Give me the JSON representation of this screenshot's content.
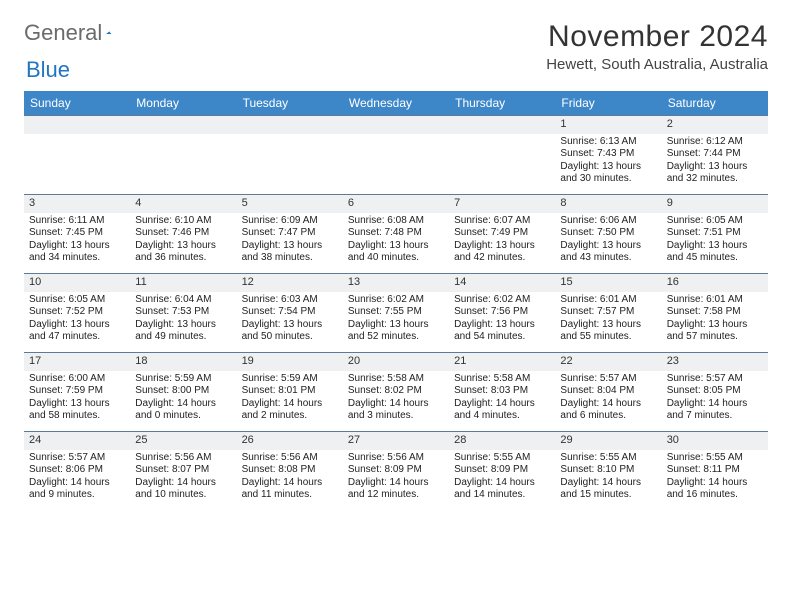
{
  "logo": {
    "text1": "General",
    "text2": "Blue"
  },
  "title": "November 2024",
  "location": "Hewett, South Australia, Australia",
  "headers": [
    "Sunday",
    "Monday",
    "Tuesday",
    "Wednesday",
    "Thursday",
    "Friday",
    "Saturday"
  ],
  "colors": {
    "header_bg": "#3d87c9",
    "header_text": "#ffffff",
    "daynum_bg": "#eef0f1",
    "border": "#5f7a99",
    "logo_gray": "#6b6b6b",
    "logo_blue": "#2176c1"
  },
  "weeks": [
    [
      null,
      null,
      null,
      null,
      null,
      {
        "n": "1",
        "sr": "6:13 AM",
        "ss": "7:43 PM",
        "dl": "13 hours and 30 minutes."
      },
      {
        "n": "2",
        "sr": "6:12 AM",
        "ss": "7:44 PM",
        "dl": "13 hours and 32 minutes."
      }
    ],
    [
      {
        "n": "3",
        "sr": "6:11 AM",
        "ss": "7:45 PM",
        "dl": "13 hours and 34 minutes."
      },
      {
        "n": "4",
        "sr": "6:10 AM",
        "ss": "7:46 PM",
        "dl": "13 hours and 36 minutes."
      },
      {
        "n": "5",
        "sr": "6:09 AM",
        "ss": "7:47 PM",
        "dl": "13 hours and 38 minutes."
      },
      {
        "n": "6",
        "sr": "6:08 AM",
        "ss": "7:48 PM",
        "dl": "13 hours and 40 minutes."
      },
      {
        "n": "7",
        "sr": "6:07 AM",
        "ss": "7:49 PM",
        "dl": "13 hours and 42 minutes."
      },
      {
        "n": "8",
        "sr": "6:06 AM",
        "ss": "7:50 PM",
        "dl": "13 hours and 43 minutes."
      },
      {
        "n": "9",
        "sr": "6:05 AM",
        "ss": "7:51 PM",
        "dl": "13 hours and 45 minutes."
      }
    ],
    [
      {
        "n": "10",
        "sr": "6:05 AM",
        "ss": "7:52 PM",
        "dl": "13 hours and 47 minutes."
      },
      {
        "n": "11",
        "sr": "6:04 AM",
        "ss": "7:53 PM",
        "dl": "13 hours and 49 minutes."
      },
      {
        "n": "12",
        "sr": "6:03 AM",
        "ss": "7:54 PM",
        "dl": "13 hours and 50 minutes."
      },
      {
        "n": "13",
        "sr": "6:02 AM",
        "ss": "7:55 PM",
        "dl": "13 hours and 52 minutes."
      },
      {
        "n": "14",
        "sr": "6:02 AM",
        "ss": "7:56 PM",
        "dl": "13 hours and 54 minutes."
      },
      {
        "n": "15",
        "sr": "6:01 AM",
        "ss": "7:57 PM",
        "dl": "13 hours and 55 minutes."
      },
      {
        "n": "16",
        "sr": "6:01 AM",
        "ss": "7:58 PM",
        "dl": "13 hours and 57 minutes."
      }
    ],
    [
      {
        "n": "17",
        "sr": "6:00 AM",
        "ss": "7:59 PM",
        "dl": "13 hours and 58 minutes."
      },
      {
        "n": "18",
        "sr": "5:59 AM",
        "ss": "8:00 PM",
        "dl": "14 hours and 0 minutes."
      },
      {
        "n": "19",
        "sr": "5:59 AM",
        "ss": "8:01 PM",
        "dl": "14 hours and 2 minutes."
      },
      {
        "n": "20",
        "sr": "5:58 AM",
        "ss": "8:02 PM",
        "dl": "14 hours and 3 minutes."
      },
      {
        "n": "21",
        "sr": "5:58 AM",
        "ss": "8:03 PM",
        "dl": "14 hours and 4 minutes."
      },
      {
        "n": "22",
        "sr": "5:57 AM",
        "ss": "8:04 PM",
        "dl": "14 hours and 6 minutes."
      },
      {
        "n": "23",
        "sr": "5:57 AM",
        "ss": "8:05 PM",
        "dl": "14 hours and 7 minutes."
      }
    ],
    [
      {
        "n": "24",
        "sr": "5:57 AM",
        "ss": "8:06 PM",
        "dl": "14 hours and 9 minutes."
      },
      {
        "n": "25",
        "sr": "5:56 AM",
        "ss": "8:07 PM",
        "dl": "14 hours and 10 minutes."
      },
      {
        "n": "26",
        "sr": "5:56 AM",
        "ss": "8:08 PM",
        "dl": "14 hours and 11 minutes."
      },
      {
        "n": "27",
        "sr": "5:56 AM",
        "ss": "8:09 PM",
        "dl": "14 hours and 12 minutes."
      },
      {
        "n": "28",
        "sr": "5:55 AM",
        "ss": "8:09 PM",
        "dl": "14 hours and 14 minutes."
      },
      {
        "n": "29",
        "sr": "5:55 AM",
        "ss": "8:10 PM",
        "dl": "14 hours and 15 minutes."
      },
      {
        "n": "30",
        "sr": "5:55 AM",
        "ss": "8:11 PM",
        "dl": "14 hours and 16 minutes."
      }
    ]
  ],
  "labels": {
    "sunrise": "Sunrise: ",
    "sunset": "Sunset: ",
    "daylight": "Daylight: "
  }
}
